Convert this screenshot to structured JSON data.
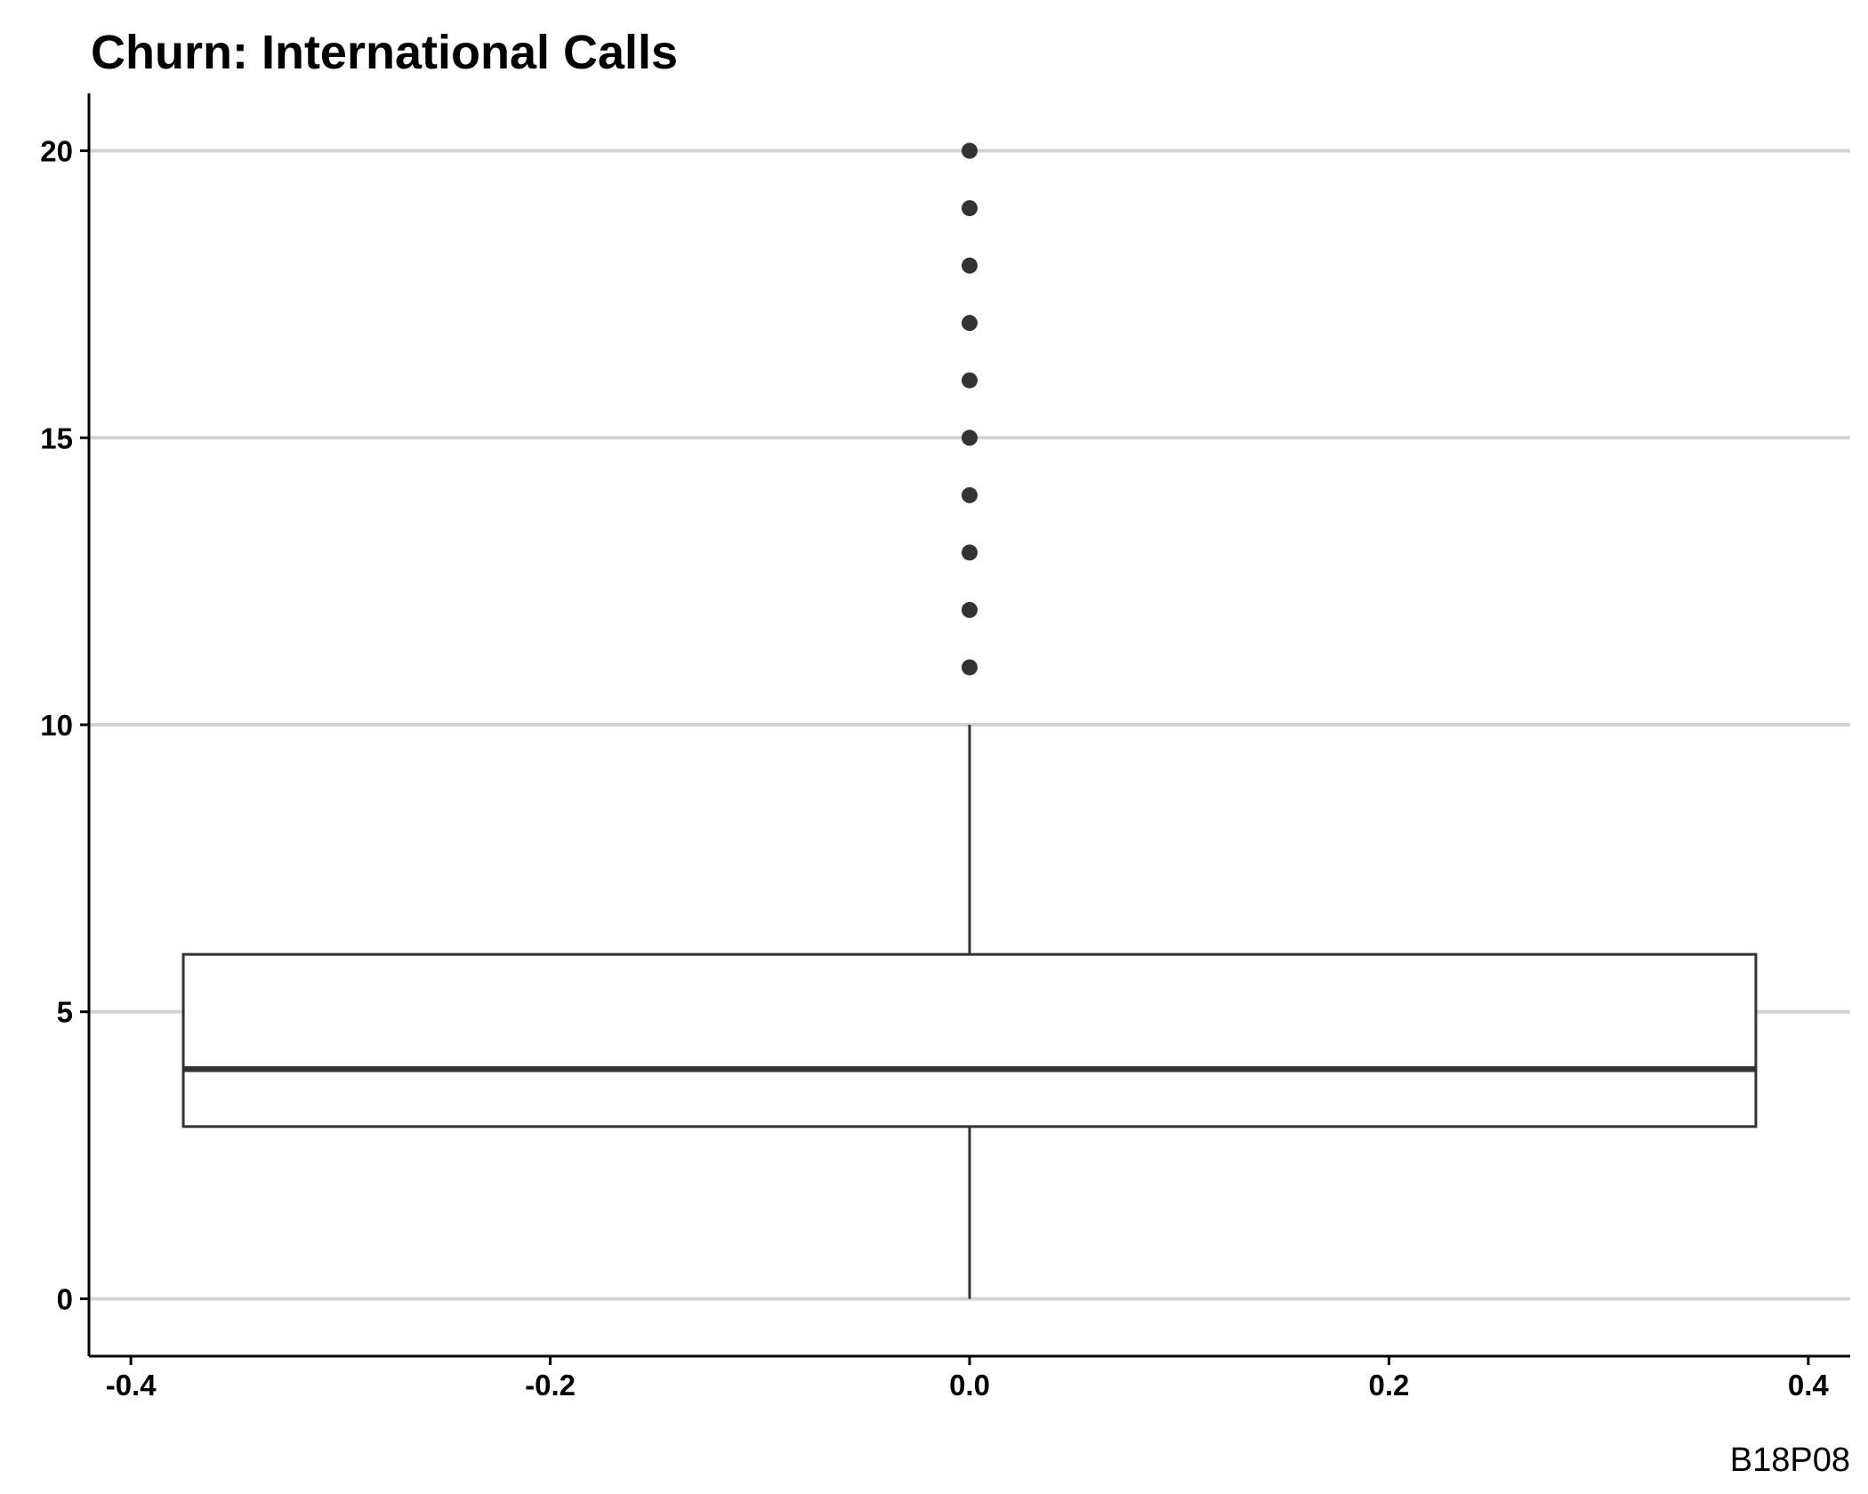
{
  "chart_data": {
    "type": "boxplot",
    "title": "Churn: International Calls",
    "caption": "B18P08",
    "xlabel": "",
    "ylabel": "",
    "xlim": [
      -0.42,
      0.42
    ],
    "ylim": [
      -1,
      21
    ],
    "x_ticks": [
      "-0.4",
      "-0.2",
      "0.0",
      "0.2",
      "0.4"
    ],
    "x_tick_values": [
      -0.4,
      -0.2,
      0.0,
      0.2,
      0.4
    ],
    "y_ticks": [
      "0",
      "5",
      "10",
      "15",
      "20"
    ],
    "y_tick_values": [
      0,
      5,
      10,
      15,
      20
    ],
    "grid": "horizontal major",
    "box": {
      "x_center": 0.0,
      "x_min": -0.375,
      "x_max": 0.375,
      "whisker_low": 0,
      "q1": 3,
      "median": 4,
      "q3": 6,
      "whisker_high": 10,
      "outliers": [
        11,
        12,
        13,
        14,
        15,
        16,
        17,
        18,
        19,
        20
      ]
    },
    "colors": {
      "grid": "#d3d3d3",
      "box_line": "#333333",
      "axis": "#000000",
      "outlier": "#333333"
    }
  }
}
